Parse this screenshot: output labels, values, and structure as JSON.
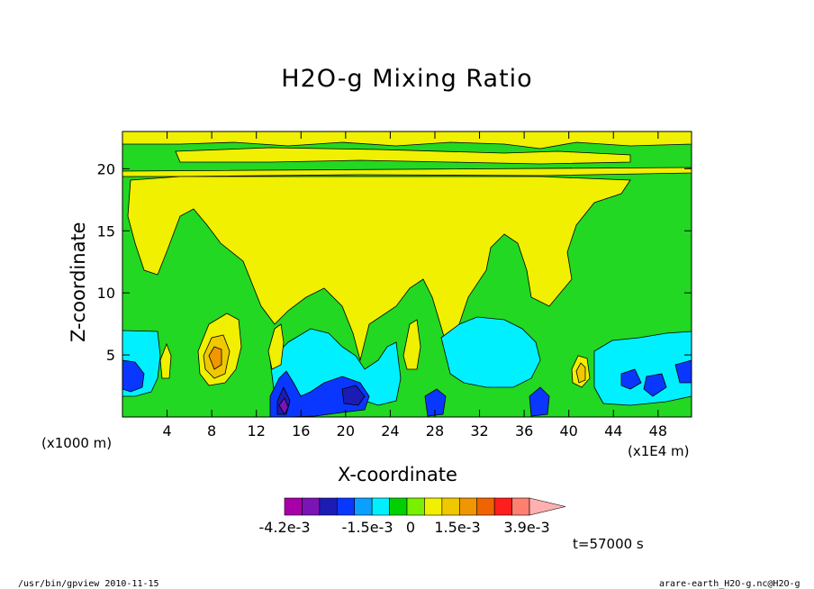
{
  "chart_data": {
    "type": "heatmap",
    "title": "H2O-g Mixing Ratio",
    "xlabel": "X-coordinate",
    "ylabel": "Z-coordinate",
    "x_unit_label": "(x1E4 m)",
    "y_unit_label": "(x1000 m)",
    "xlim": [
      0,
      51
    ],
    "ylim": [
      0,
      23
    ],
    "x_ticks": [
      4,
      8,
      12,
      16,
      20,
      24,
      28,
      32,
      36,
      40,
      44,
      48
    ],
    "y_ticks": [
      5,
      10,
      15,
      20
    ],
    "colorbar": {
      "colors": [
        "#a800a8",
        "#7a14b4",
        "#1c1cb4",
        "#0a37ff",
        "#0aa0ff",
        "#00f0ff",
        "#00d000",
        "#78f000",
        "#f0f000",
        "#f0c800",
        "#f09600",
        "#f06400",
        "#ff1e1e",
        "#ff8070",
        "#ffb0b0"
      ],
      "tick_labels": [
        "-4.2e-3",
        "-1.5e-3",
        "0",
        "1.5e-3",
        "3.9e-3"
      ]
    },
    "regions": [
      {
        "level": "green",
        "color": "#22d822",
        "note": "background"
      },
      {
        "level": "yellow",
        "color": "#f0f000"
      },
      {
        "level": "cyan",
        "color": "#00f0ff"
      },
      {
        "level": "blue",
        "color": "#0a37ff"
      },
      {
        "level": "darkblue",
        "color": "#1c1cb4"
      },
      {
        "level": "orange",
        "color": "#f0a000"
      }
    ]
  },
  "footer": {
    "time_label": "t=57000 s",
    "left_note": "/usr/bin/gpview  2010-11-15",
    "right_note": "arare-earth_H2O-g.nc@H2O-g"
  }
}
